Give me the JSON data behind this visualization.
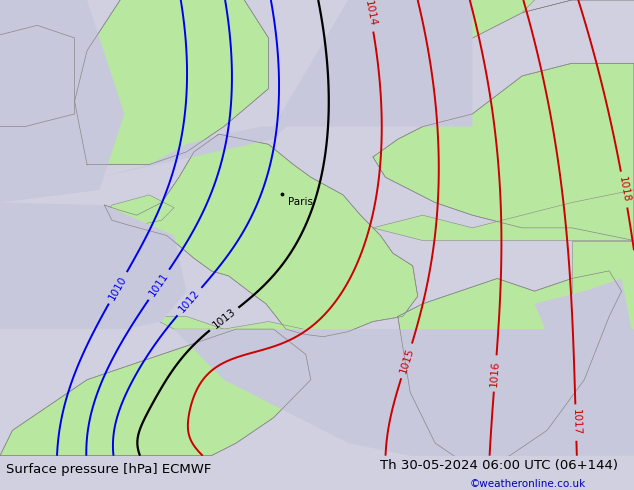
{
  "title_left": "Surface pressure [hPa] ECMWF",
  "title_right": "Th 30-05-2024 06:00 UTC (06+144)",
  "copyright": "©weatheronline.co.uk",
  "bg_color": "#d0d0e0",
  "land_color": "#b8e8a0",
  "sea_color": "#c8c8dc",
  "contour_colors": {
    "blue": "#0000ee",
    "black": "#000000",
    "red": "#cc0000"
  },
  "title_fontsize": 9.5,
  "copyright_color": "#0000bb",
  "paris_dot": [
    2.35,
    48.85
  ],
  "paris_label": "Paris",
  "fig_width": 6.34,
  "fig_height": 4.9,
  "dpi": 100,
  "lon_min": -9.0,
  "lon_max": 16.5,
  "lat_min": 38.5,
  "lat_max": 56.5
}
